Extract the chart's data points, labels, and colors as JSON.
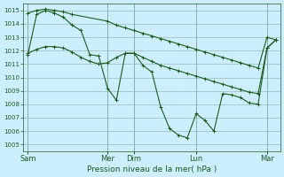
{
  "bg_color": "#cceeff",
  "grid_color": "#99bbbb",
  "line_color": "#1a5c1a",
  "xlabel": "Pression niveau de la mer( hPa )",
  "ylim": [
    1004.5,
    1015.5
  ],
  "yticks": [
    1005,
    1006,
    1007,
    1008,
    1009,
    1010,
    1011,
    1012,
    1013,
    1014,
    1015
  ],
  "x_day_labels": [
    "Sam",
    "Mer",
    "Dim",
    "Lun",
    "Mar"
  ],
  "x_day_positions": [
    0,
    9,
    12,
    19,
    27
  ],
  "xlim": [
    -0.5,
    28.5
  ],
  "line1_x": [
    0,
    1,
    2,
    3,
    4,
    5,
    6,
    7,
    8,
    9,
    10,
    11,
    12,
    13,
    14,
    15,
    16,
    17,
    18,
    19,
    20,
    21,
    22,
    23,
    24,
    25,
    26,
    27,
    28
  ],
  "line1_y": [
    1011.8,
    1012.1,
    1012.3,
    1012.3,
    1012.2,
    1011.9,
    1011.5,
    1011.2,
    1011.0,
    1011.1,
    1011.5,
    1011.8,
    1011.8,
    1011.5,
    1011.2,
    1010.9,
    1010.7,
    1010.5,
    1010.3,
    1010.1,
    1009.9,
    1009.7,
    1009.5,
    1009.3,
    1009.1,
    1008.9,
    1008.8,
    1012.2,
    1012.8
  ],
  "line2_x": [
    0,
    1,
    2,
    3,
    4,
    5,
    9,
    10,
    11,
    12,
    13,
    14,
    15,
    16,
    17,
    18,
    19,
    20,
    21,
    22,
    23,
    24,
    25,
    26,
    27,
    28
  ],
  "line2_y": [
    1014.8,
    1015.0,
    1015.1,
    1015.0,
    1014.9,
    1014.7,
    1014.2,
    1013.9,
    1013.7,
    1013.5,
    1013.3,
    1013.1,
    1012.9,
    1012.7,
    1012.5,
    1012.3,
    1012.1,
    1011.9,
    1011.7,
    1011.5,
    1011.3,
    1011.1,
    1010.9,
    1010.7,
    1013.0,
    1012.8
  ],
  "line3_x": [
    0,
    1,
    2,
    3,
    4,
    5,
    6,
    7,
    8,
    9,
    10,
    11,
    12,
    13,
    14,
    15,
    16,
    17,
    18,
    19,
    20,
    21,
    22,
    23,
    24,
    25,
    26,
    27,
    28
  ],
  "line3_y": [
    1011.7,
    1014.7,
    1015.0,
    1014.8,
    1014.5,
    1013.9,
    1013.5,
    1011.7,
    1011.6,
    1009.2,
    1008.3,
    1011.8,
    1011.8,
    1010.9,
    1010.4,
    1007.8,
    1006.2,
    1005.7,
    1005.5,
    1007.3,
    1006.8,
    1006.0,
    1008.8,
    1008.7,
    1008.5,
    1008.1,
    1008.0,
    1012.2,
    1012.8
  ]
}
